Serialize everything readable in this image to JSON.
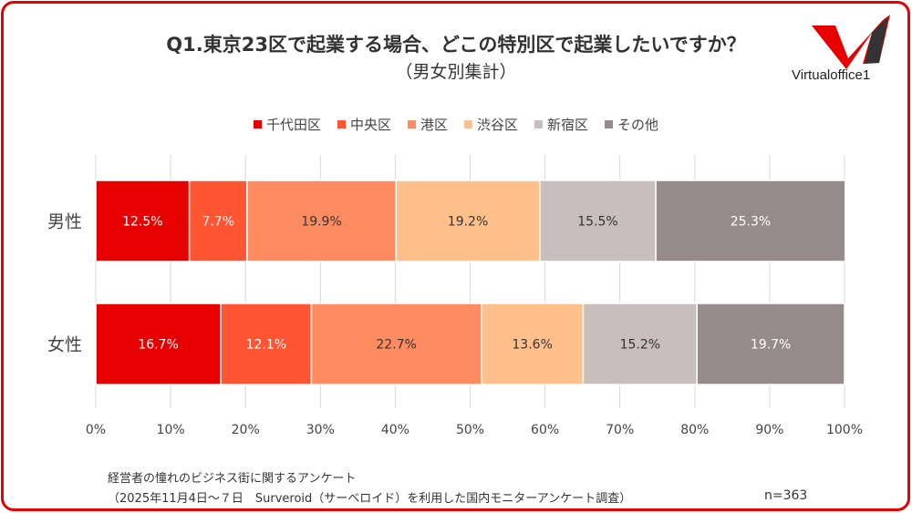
{
  "title": "Q1.東京23区で起業する場合、どこの特別区で起業したいですか？",
  "subtitle": "（男女別集計）",
  "logo": {
    "text": "Virtualoffice1"
  },
  "footer": {
    "line1": "経営者の憧れのビジネス街に関するアンケート",
    "line2": "（2025年11月4日～７日　Surveroid（サーベロイド）を利用した国内モニターアンケート調査）",
    "n": "n=363"
  },
  "chart_data": {
    "type": "bar",
    "orientation": "horizontal",
    "stacked": true,
    "categories": [
      "男性",
      "女性"
    ],
    "series": [
      {
        "name": "千代田区",
        "values": [
          12.5,
          16.7
        ],
        "labels": [
          "12.5%",
          "16.7%"
        ],
        "color": "#e60000",
        "label_color": "#ffffff"
      },
      {
        "name": "中央区",
        "values": [
          7.7,
          12.1
        ],
        "labels": [
          "7.7%",
          "12.1%"
        ],
        "color": "#ff5533",
        "label_color": "#ffffff"
      },
      {
        "name": "港区",
        "values": [
          19.9,
          22.7
        ],
        "labels": [
          "19.9%",
          "22.7%"
        ],
        "color": "#ff8c60",
        "label_color": "#333333"
      },
      {
        "name": "渋谷区",
        "values": [
          19.2,
          13.6
        ],
        "labels": [
          "19.2%",
          "13.6%"
        ],
        "color": "#ffc08c",
        "label_color": "#333333"
      },
      {
        "name": "新宿区",
        "values": [
          15.5,
          15.2
        ],
        "labels": [
          "15.5%",
          "15.2%"
        ],
        "color": "#c9bebe",
        "label_color": "#333333"
      },
      {
        "name": "その他",
        "values": [
          25.3,
          19.7
        ],
        "labels": [
          "25.3%",
          "19.7%"
        ],
        "color": "#958b8b",
        "label_color": "#ffffff"
      }
    ],
    "xticks": [
      "0%",
      "10%",
      "20%",
      "30%",
      "40%",
      "50%",
      "60%",
      "70%",
      "80%",
      "90%",
      "100%"
    ],
    "xlim": [
      0,
      100
    ],
    "grid": true,
    "legend": "top"
  }
}
